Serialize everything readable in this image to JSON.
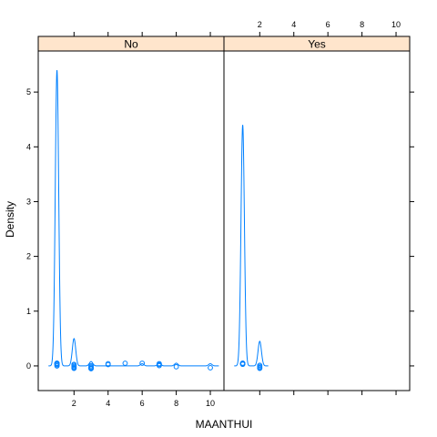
{
  "chart_data": {
    "type": "density",
    "xlabel": "MAANTHUI",
    "ylabel": "Density",
    "x_ticks": [
      2,
      4,
      6,
      8,
      10
    ],
    "y_ticks": [
      0,
      1,
      2,
      3,
      4,
      5
    ],
    "xlim": [
      -0.1,
      10.8
    ],
    "ylim": [
      -0.45,
      5.75
    ],
    "strip_color": "#ffe5cc",
    "line_color": "#0080ff",
    "panels": [
      {
        "name": "No",
        "x_points": [
          1,
          1,
          1,
          1,
          1,
          1,
          2,
          2,
          2,
          2,
          2,
          3,
          3,
          3,
          3,
          3,
          4,
          4,
          5,
          6,
          7,
          7,
          7,
          8,
          10
        ],
        "density_peaks": [
          {
            "x": 1,
            "height": 5.4
          },
          {
            "x": 2,
            "height": 0.5
          },
          {
            "x": 3,
            "height": 0.08
          },
          {
            "x": 6,
            "height": 0.04
          },
          {
            "x": 7,
            "height": 0.05
          },
          {
            "x": 8,
            "height": 0.05
          },
          {
            "x": 10,
            "height": 0.04
          }
        ]
      },
      {
        "name": "Yes",
        "x_points": [
          1,
          1,
          1,
          1,
          1,
          2,
          2,
          2,
          2
        ],
        "density_peaks": [
          {
            "x": 1,
            "height": 4.4
          },
          {
            "x": 2,
            "height": 0.45
          }
        ]
      }
    ]
  }
}
